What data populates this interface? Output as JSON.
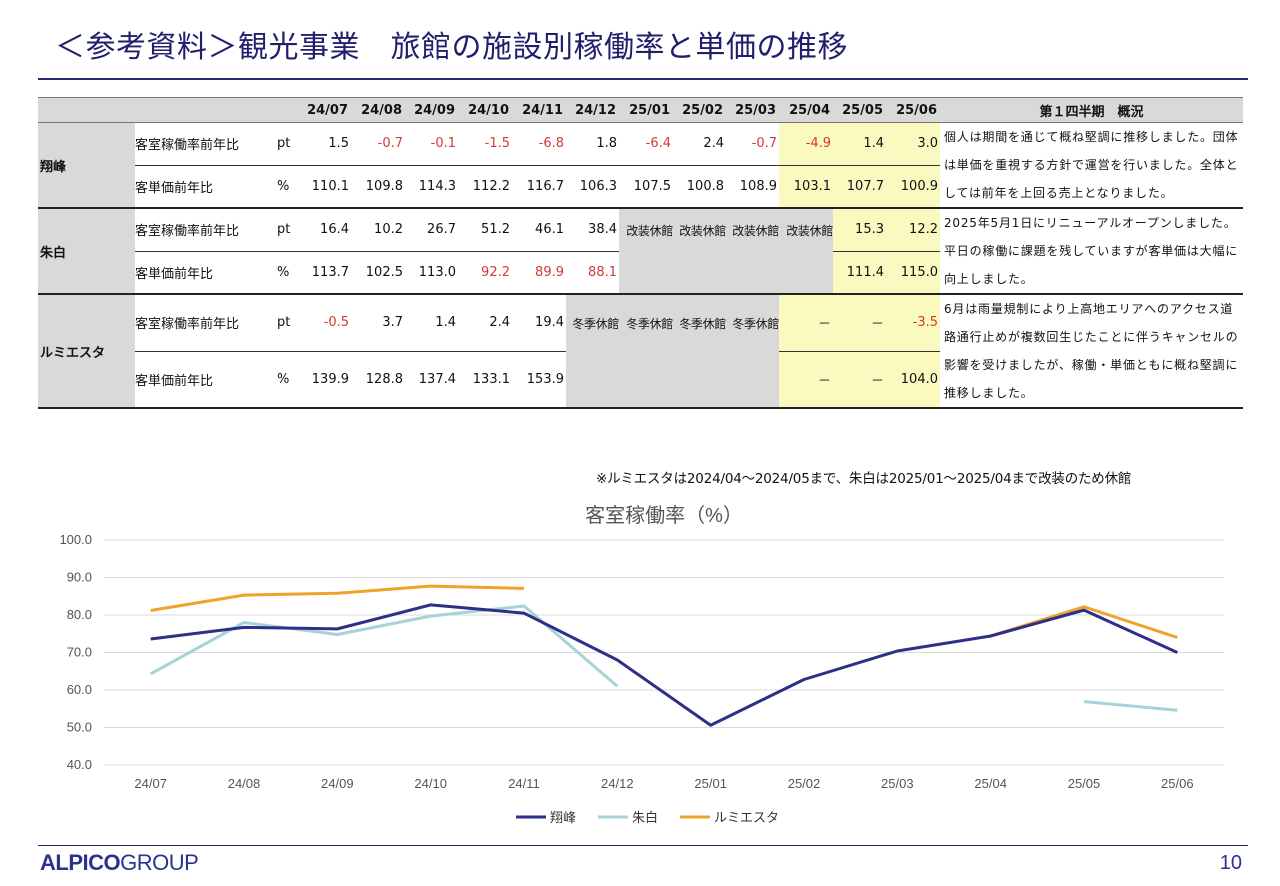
{
  "title": "＜参考資料＞観光事業　旅館の施設別稼働率と単価の推移",
  "table": {
    "months": [
      "24/07",
      "24/08",
      "24/09",
      "24/10",
      "24/11",
      "24/12",
      "25/01",
      "25/02",
      "25/03",
      "25/04",
      "25/05",
      "25/06"
    ],
    "summary_header": "第１四半期　概況",
    "rows": [
      {
        "facility": "翔峰",
        "metric": "客室稼働率前年比",
        "unit": "pt",
        "values": [
          "1.5",
          "-0.7",
          "-0.1",
          "-1.5",
          "-6.8",
          "1.8",
          "-6.4",
          "2.4",
          "-0.7",
          "-4.9",
          "1.4",
          "3.0"
        ]
      },
      {
        "facility": "",
        "metric": "客単価前年比",
        "unit": "%",
        "values": [
          "110.1",
          "109.8",
          "114.3",
          "112.2",
          "116.7",
          "106.3",
          "107.5",
          "100.8",
          "108.9",
          "103.1",
          "107.7",
          "100.9"
        ]
      },
      {
        "facility": "朱白",
        "metric": "客室稼働率前年比",
        "unit": "pt",
        "values": [
          "16.4",
          "10.2",
          "26.7",
          "51.2",
          "46.1",
          "38.4",
          "改装休館",
          "改装休館",
          "改装休館",
          "改装休館",
          "15.3",
          "12.2"
        ]
      },
      {
        "facility": "",
        "metric": "客単価前年比",
        "unit": "%",
        "values": [
          "113.7",
          "102.5",
          "113.0",
          "92.2",
          "89.9",
          "88.1",
          "",
          "",
          "",
          "",
          "111.4",
          "115.0"
        ]
      },
      {
        "facility": "ルミエスタ",
        "metric": "客室稼働率前年比",
        "unit": "pt",
        "values": [
          "-0.5",
          "3.7",
          "1.4",
          "2.4",
          "19.4",
          "冬季休館",
          "冬季休館",
          "冬季休館",
          "冬季休館",
          "－",
          "－",
          "-3.5"
        ]
      },
      {
        "facility": "",
        "metric": "客単価前年比",
        "unit": "%",
        "values": [
          "139.9",
          "128.8",
          "137.4",
          "133.1",
          "153.9",
          "",
          "",
          "",
          "",
          "－",
          "－",
          "104.0"
        ]
      }
    ],
    "summaries": [
      "個人は期間を通じて概ね堅調に推移しました。団体は単価を重視する方針で運営を行いました。全体としては前年を上回る売上となりました。",
      "2025年5月1日にリニューアルオープンしました。平日の稼働に課題を残していますが客単価は大幅に向上しました。",
      "6月は雨量規制により上高地エリアへのアクセス道路通行止めが複数回生じたことに伴うキャンセルの影響を受けましたが、稼働・単価ともに概ね堅調に推移しました。"
    ],
    "negative_color": "#d23a35",
    "highlight_color": "#fafac0",
    "closed_color": "#d9d9d9"
  },
  "note": "※ルミエスタは2024/04～2024/05まで、朱白は2025/01～2025/04まで改装のため休館",
  "chart_data": {
    "type": "line",
    "title": "客室稼働率（%）",
    "categories": [
      "24/07",
      "24/08",
      "24/09",
      "24/10",
      "24/11",
      "24/12",
      "25/01",
      "25/02",
      "25/03",
      "25/04",
      "25/05",
      "25/06"
    ],
    "ylim": [
      40,
      100
    ],
    "yticks": [
      "40.0",
      "50.0",
      "60.0",
      "70.0",
      "80.0",
      "90.0",
      "100.0"
    ],
    "grid": true,
    "legend_position": "bottom",
    "series": [
      {
        "name": "翔峰",
        "color": "#2e2f86",
        "values": [
          73.6,
          76.7,
          76.3,
          82.7,
          80.5,
          68.0,
          50.6,
          62.8,
          70.4,
          74.4,
          81.3,
          70.0
        ]
      },
      {
        "name": "朱白",
        "color": "#a5d3d8",
        "values": [
          64.3,
          78.0,
          74.8,
          79.7,
          82.4,
          61.0,
          null,
          null,
          null,
          null,
          56.9,
          54.6
        ]
      },
      {
        "name": "ルミエスタ",
        "color": "#f0a32a",
        "values": [
          81.2,
          85.3,
          85.8,
          87.7,
          87.1,
          null,
          null,
          null,
          null,
          74.4,
          82.2,
          74.0
        ]
      }
    ]
  },
  "footer": {
    "logo_main": "ALPICO",
    "logo_group": "GROUP",
    "page_number": "10"
  }
}
